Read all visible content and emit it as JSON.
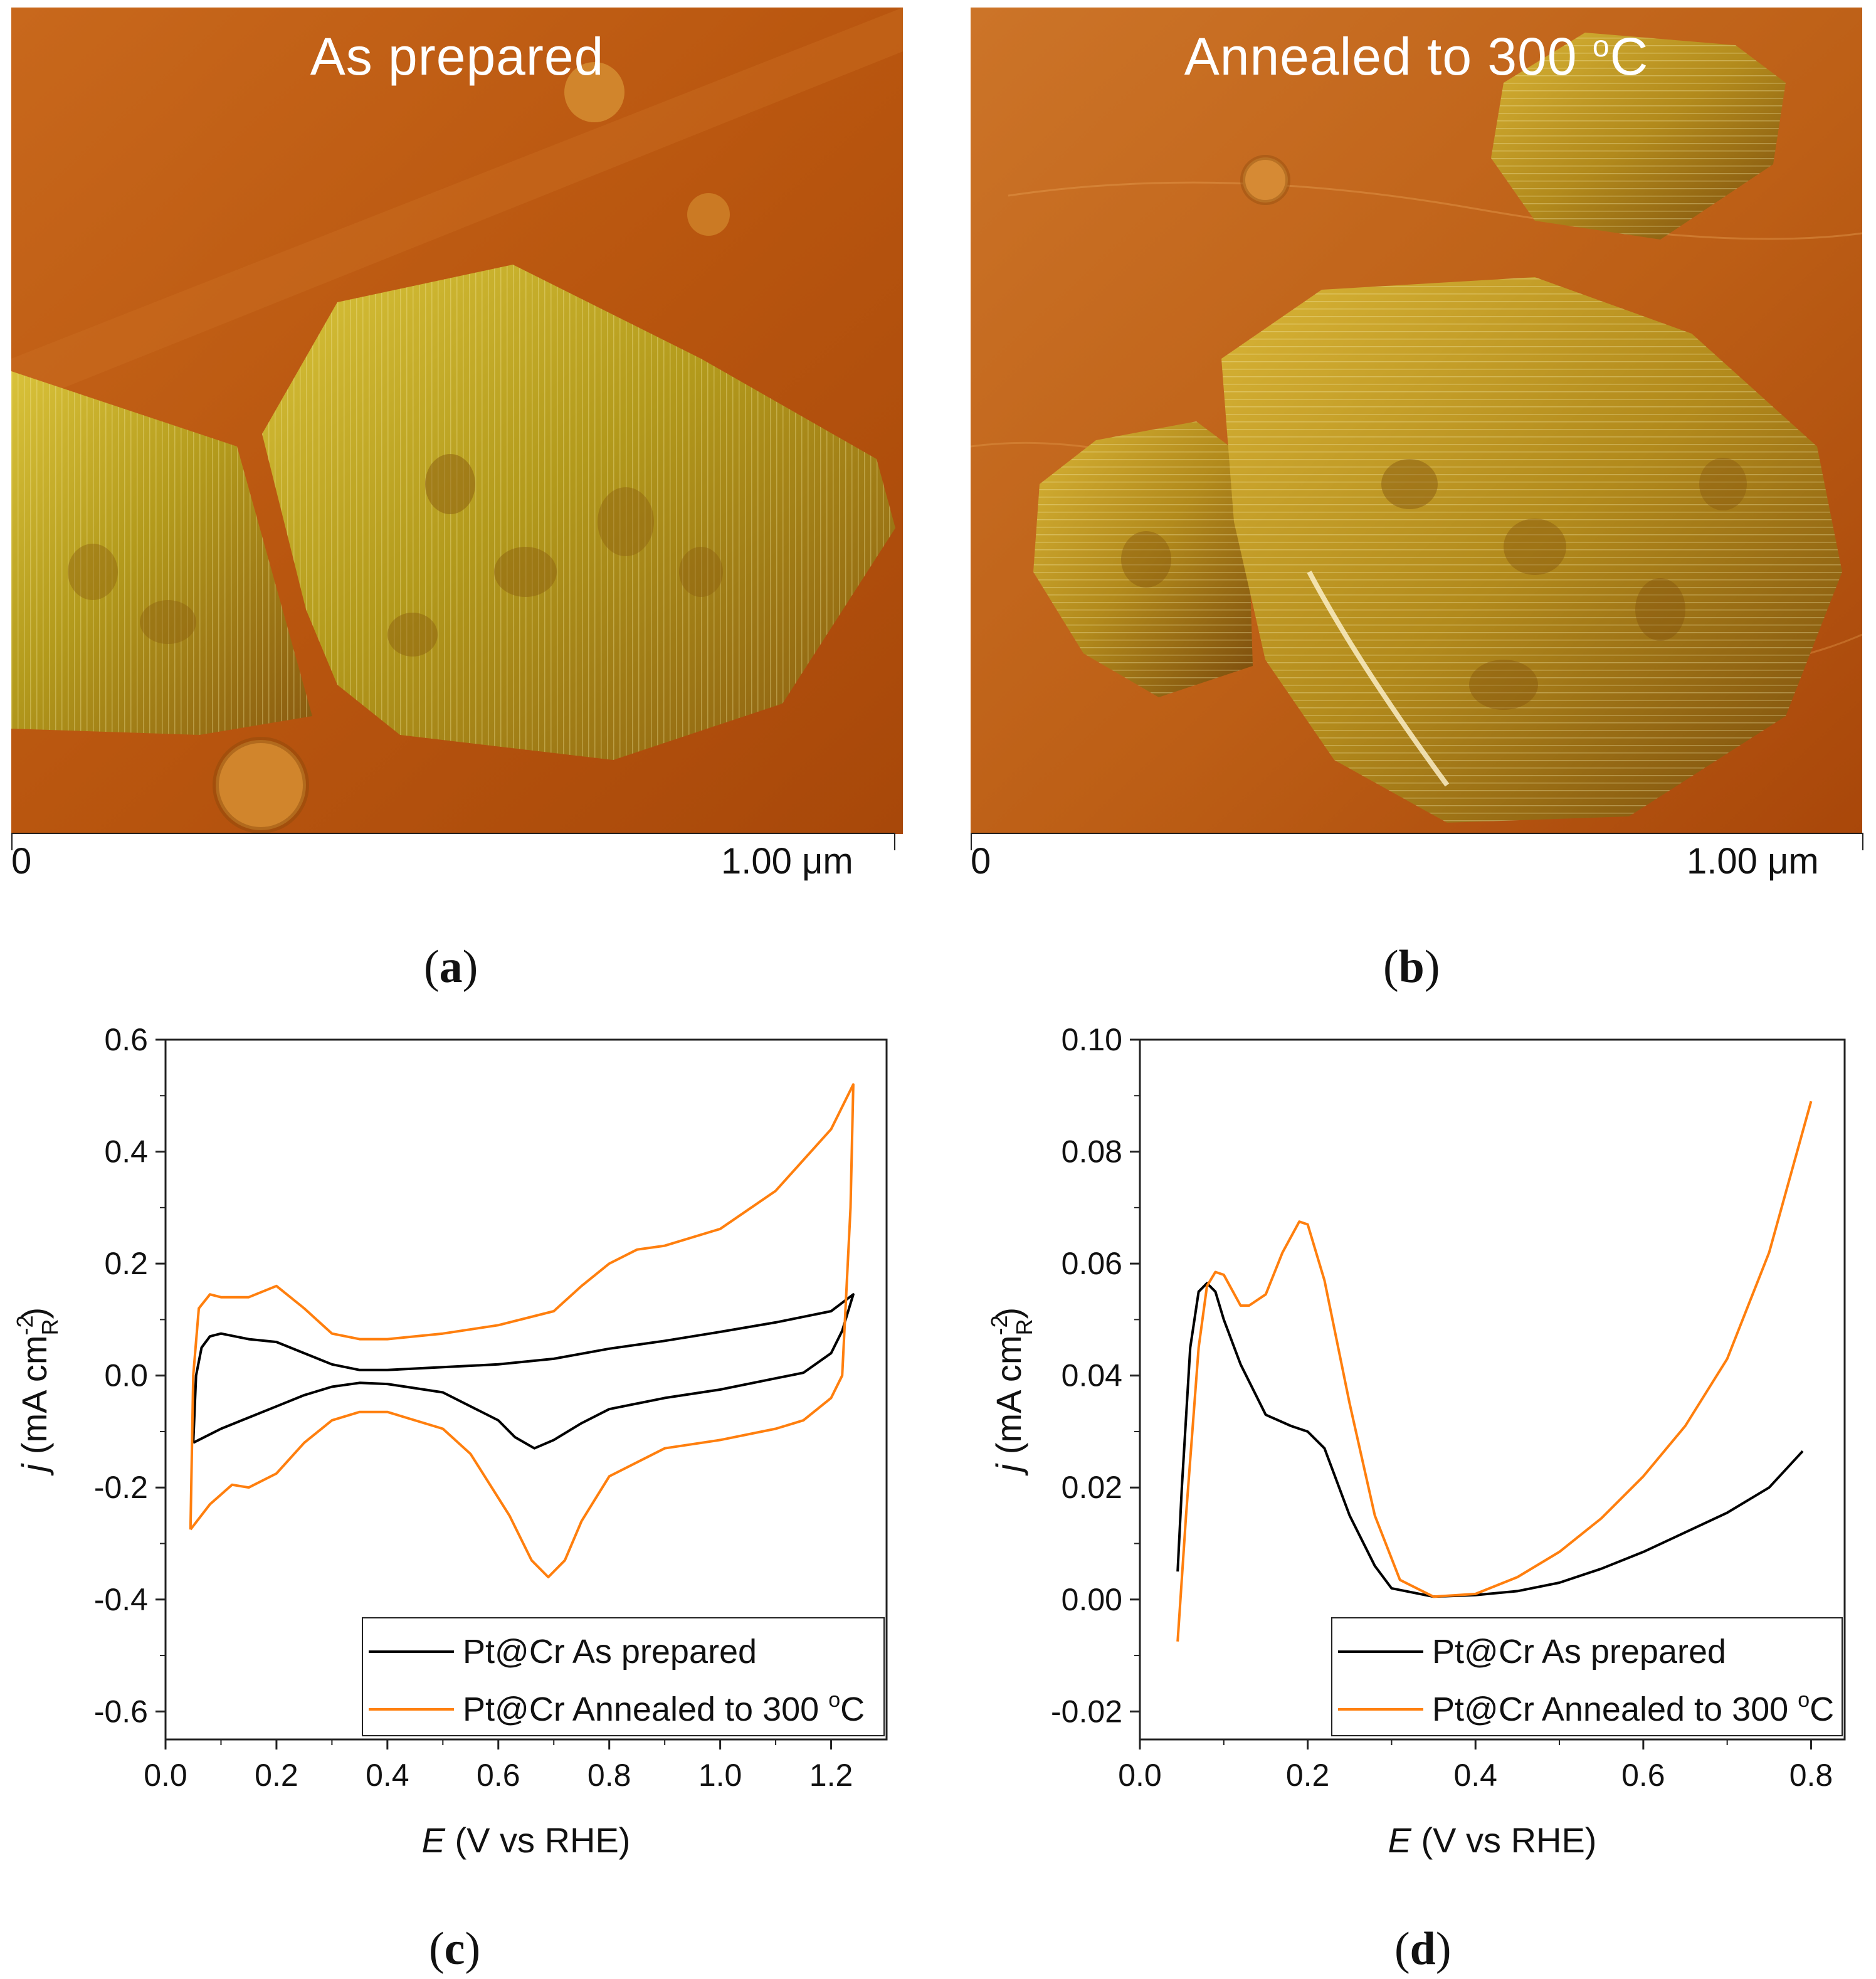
{
  "panel_a": {
    "title": "As prepared",
    "scale_start": "0",
    "scale_end": "1.00 μm",
    "label": "a"
  },
  "panel_b": {
    "title_main": "Annealed to 300 ",
    "title_sup": "o",
    "title_end": "C",
    "scale_start": "0",
    "scale_end": "1.00 μm",
    "label": "b"
  },
  "panel_c_label": "c",
  "panel_d_label": "d",
  "colors": {
    "as_prepared": "#000000",
    "annealed": "#ff7f0e",
    "afm_base": "#c25a10",
    "afm_particle": "#b8a21a"
  },
  "chart_data": [
    {
      "type": "line",
      "id": "c",
      "xlabel_italic": "E",
      "xlabel_rest": " (V vs RHE)",
      "ylabel_italic": "j",
      "ylabel_rest": " (mA cm",
      "ylabel_sup": "-2",
      "ylabel_sub": "R",
      "ylabel_close": ")",
      "xlim": [
        0.0,
        1.3
      ],
      "ylim": [
        -0.65,
        0.6
      ],
      "xticks": [
        0.0,
        0.2,
        0.4,
        0.6,
        0.8,
        1.0,
        1.2
      ],
      "xtick_labels": [
        "0.0",
        "0.2",
        "0.4",
        "0.6",
        "0.8",
        "1.0",
        "1.2"
      ],
      "yticks": [
        -0.6,
        -0.4,
        -0.2,
        0.0,
        0.2,
        0.4,
        0.6
      ],
      "ytick_labels": [
        "-0.6",
        "-0.4",
        "-0.2",
        "0.0",
        "0.2",
        "0.4",
        "0.6"
      ],
      "legend_position": "bottom-right",
      "series": [
        {
          "name": "Pt@Cr As prepared",
          "legend_text": "Pt@Cr As prepared",
          "legend_sup": "",
          "legend_end": "",
          "color": "#000000",
          "points": [
            [
              0.05,
              -0.12
            ],
            [
              0.055,
              0.0
            ],
            [
              0.065,
              0.05
            ],
            [
              0.08,
              0.07
            ],
            [
              0.1,
              0.075
            ],
            [
              0.15,
              0.065
            ],
            [
              0.2,
              0.06
            ],
            [
              0.25,
              0.04
            ],
            [
              0.3,
              0.02
            ],
            [
              0.35,
              0.01
            ],
            [
              0.4,
              0.01
            ],
            [
              0.5,
              0.015
            ],
            [
              0.6,
              0.02
            ],
            [
              0.7,
              0.03
            ],
            [
              0.8,
              0.048
            ],
            [
              0.9,
              0.062
            ],
            [
              1.0,
              0.078
            ],
            [
              1.1,
              0.095
            ],
            [
              1.2,
              0.115
            ],
            [
              1.24,
              0.145
            ],
            [
              1.22,
              0.08
            ],
            [
              1.2,
              0.04
            ],
            [
              1.15,
              0.005
            ],
            [
              1.1,
              -0.005
            ],
            [
              1.0,
              -0.025
            ],
            [
              0.9,
              -0.04
            ],
            [
              0.8,
              -0.06
            ],
            [
              0.75,
              -0.085
            ],
            [
              0.7,
              -0.115
            ],
            [
              0.665,
              -0.13
            ],
            [
              0.63,
              -0.11
            ],
            [
              0.6,
              -0.08
            ],
            [
              0.5,
              -0.03
            ],
            [
              0.4,
              -0.015
            ],
            [
              0.35,
              -0.013
            ],
            [
              0.3,
              -0.02
            ],
            [
              0.25,
              -0.035
            ],
            [
              0.2,
              -0.055
            ],
            [
              0.15,
              -0.075
            ],
            [
              0.1,
              -0.095
            ],
            [
              0.05,
              -0.12
            ]
          ]
        },
        {
          "name": "Pt@Cr Annealed to 300 oC",
          "legend_text": "Pt@Cr Annealed to 300 ",
          "legend_sup": "o",
          "legend_end": "C",
          "color": "#ff7f0e",
          "points": [
            [
              0.045,
              -0.275
            ],
            [
              0.05,
              0.0
            ],
            [
              0.06,
              0.12
            ],
            [
              0.08,
              0.145
            ],
            [
              0.1,
              0.14
            ],
            [
              0.15,
              0.14
            ],
            [
              0.2,
              0.16
            ],
            [
              0.25,
              0.12
            ],
            [
              0.3,
              0.075
            ],
            [
              0.35,
              0.065
            ],
            [
              0.4,
              0.065
            ],
            [
              0.5,
              0.075
            ],
            [
              0.6,
              0.09
            ],
            [
              0.7,
              0.115
            ],
            [
              0.75,
              0.16
            ],
            [
              0.8,
              0.2
            ],
            [
              0.85,
              0.225
            ],
            [
              0.9,
              0.232
            ],
            [
              1.0,
              0.262
            ],
            [
              1.1,
              0.33
            ],
            [
              1.2,
              0.44
            ],
            [
              1.24,
              0.52
            ],
            [
              1.235,
              0.3
            ],
            [
              1.22,
              0.0
            ],
            [
              1.2,
              -0.04
            ],
            [
              1.15,
              -0.08
            ],
            [
              1.1,
              -0.095
            ],
            [
              1.0,
              -0.115
            ],
            [
              0.9,
              -0.13
            ],
            [
              0.8,
              -0.18
            ],
            [
              0.75,
              -0.26
            ],
            [
              0.72,
              -0.33
            ],
            [
              0.69,
              -0.36
            ],
            [
              0.66,
              -0.33
            ],
            [
              0.62,
              -0.25
            ],
            [
              0.55,
              -0.14
            ],
            [
              0.5,
              -0.095
            ],
            [
              0.4,
              -0.065
            ],
            [
              0.35,
              -0.065
            ],
            [
              0.3,
              -0.08
            ],
            [
              0.25,
              -0.12
            ],
            [
              0.2,
              -0.175
            ],
            [
              0.15,
              -0.2
            ],
            [
              0.12,
              -0.195
            ],
            [
              0.08,
              -0.23
            ],
            [
              0.045,
              -0.275
            ]
          ]
        }
      ]
    },
    {
      "type": "line",
      "id": "d",
      "xlabel_italic": "E",
      "xlabel_rest": " (V vs RHE)",
      "ylabel_italic": "j",
      "ylabel_rest": " (mA cm",
      "ylabel_sup": "-2",
      "ylabel_sub": "R",
      "ylabel_close": ")",
      "xlim": [
        0.0,
        0.84
      ],
      "ylim": [
        -0.025,
        0.1
      ],
      "xticks": [
        0.0,
        0.2,
        0.4,
        0.6,
        0.8
      ],
      "xtick_labels": [
        "0.0",
        "0.2",
        "0.4",
        "0.6",
        "0.8"
      ],
      "yticks": [
        -0.02,
        0.0,
        0.02,
        0.04,
        0.06,
        0.08,
        0.1
      ],
      "ytick_labels": [
        "-0.02",
        "0.00",
        "0.02",
        "0.04",
        "0.06",
        "0.08",
        "0.10"
      ],
      "legend_position": "bottom-right",
      "series": [
        {
          "name": "Pt@Cr As prepared",
          "legend_text": "Pt@Cr As prepared",
          "legend_sup": "",
          "legend_end": "",
          "color": "#000000",
          "points": [
            [
              0.045,
              0.005
            ],
            [
              0.05,
              0.02
            ],
            [
              0.06,
              0.045
            ],
            [
              0.07,
              0.055
            ],
            [
              0.08,
              0.0565
            ],
            [
              0.09,
              0.055
            ],
            [
              0.1,
              0.05
            ],
            [
              0.12,
              0.042
            ],
            [
              0.15,
              0.033
            ],
            [
              0.18,
              0.031
            ],
            [
              0.2,
              0.03
            ],
            [
              0.22,
              0.027
            ],
            [
              0.25,
              0.015
            ],
            [
              0.28,
              0.006
            ],
            [
              0.3,
              0.002
            ],
            [
              0.35,
              0.0005
            ],
            [
              0.4,
              0.0008
            ],
            [
              0.45,
              0.0015
            ],
            [
              0.5,
              0.003
            ],
            [
              0.55,
              0.0055
            ],
            [
              0.6,
              0.0085
            ],
            [
              0.65,
              0.012
            ],
            [
              0.7,
              0.0155
            ],
            [
              0.75,
              0.02
            ],
            [
              0.79,
              0.0265
            ]
          ]
        },
        {
          "name": "Pt@Cr Annealed to 300 oC",
          "legend_text": "Pt@Cr Annealed to 300 ",
          "legend_sup": "o",
          "legend_end": "C",
          "color": "#ff7f0e",
          "points": [
            [
              0.045,
              -0.0075
            ],
            [
              0.055,
              0.015
            ],
            [
              0.07,
              0.045
            ],
            [
              0.08,
              0.056
            ],
            [
              0.09,
              0.0585
            ],
            [
              0.1,
              0.058
            ],
            [
              0.12,
              0.0525
            ],
            [
              0.13,
              0.0525
            ],
            [
              0.15,
              0.0545
            ],
            [
              0.17,
              0.062
            ],
            [
              0.19,
              0.0675
            ],
            [
              0.2,
              0.067
            ],
            [
              0.22,
              0.057
            ],
            [
              0.25,
              0.035
            ],
            [
              0.28,
              0.015
            ],
            [
              0.31,
              0.0035
            ],
            [
              0.35,
              0.0005
            ],
            [
              0.4,
              0.001
            ],
            [
              0.45,
              0.004
            ],
            [
              0.5,
              0.0085
            ],
            [
              0.55,
              0.0145
            ],
            [
              0.6,
              0.022
            ],
            [
              0.65,
              0.031
            ],
            [
              0.7,
              0.043
            ],
            [
              0.75,
              0.062
            ],
            [
              0.8,
              0.089
            ]
          ]
        }
      ]
    }
  ]
}
